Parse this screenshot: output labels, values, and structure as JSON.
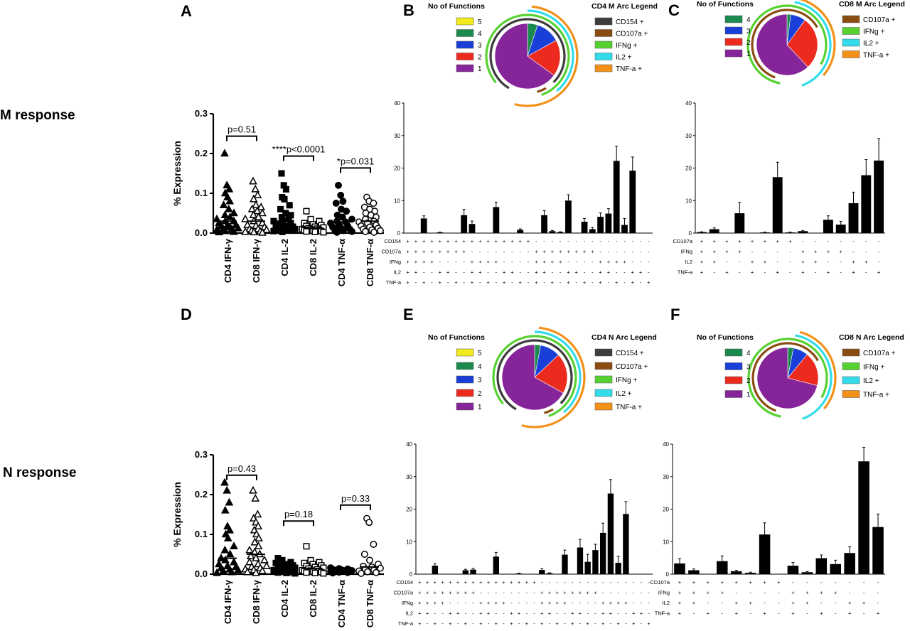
{
  "row_labels": {
    "m": "M response",
    "n": "N response"
  },
  "panel_letters": {
    "a": "A",
    "b": "B",
    "c": "C",
    "d": "D",
    "e": "E",
    "f": "F"
  },
  "colors": {
    "f5": "#f2ea1c",
    "f4": "#1a8a4e",
    "f3": "#1a3fd9",
    "f2": "#ec2b1e",
    "f1": "#86259a",
    "cd154": "#3c3c3c",
    "cd107a": "#8b4c12",
    "ifng": "#56d130",
    "il2": "#32dcea",
    "tnfa": "#f39018"
  },
  "legends": {
    "functions_title": "No of Functions",
    "cd4_m_title": "CD4 M Arc Legend",
    "cd8_m_title": "CD8 M Arc Legend",
    "cd4_n_title": "CD4 N Arc Legend",
    "cd8_n_title": "CD8 N Arc Legend",
    "cd4_functions": [
      {
        "label": "5",
        "color": "#f2ea1c"
      },
      {
        "label": "4",
        "color": "#1a8a4e"
      },
      {
        "label": "3",
        "color": "#1a3fd9"
      },
      {
        "label": "2",
        "color": "#ec2b1e"
      },
      {
        "label": "1",
        "color": "#86259a"
      }
    ],
    "cd8_functions": [
      {
        "label": "4",
        "color": "#1a8a4e"
      },
      {
        "label": "3",
        "color": "#1a3fd9"
      },
      {
        "label": "2",
        "color": "#ec2b1e"
      },
      {
        "label": "1",
        "color": "#86259a"
      }
    ],
    "cd4_arcs": [
      {
        "label": "CD154 +",
        "color": "#3c3c3c"
      },
      {
        "label": "CD107a +",
        "color": "#8b4c12"
      },
      {
        "label": "IFNg +",
        "color": "#56d130"
      },
      {
        "label": "IL2 +",
        "color": "#32dcea"
      },
      {
        "label": "TNF-a +",
        "color": "#f39018"
      }
    ],
    "cd8_arcs": [
      {
        "label": "CD107a +",
        "color": "#8b4c12"
      },
      {
        "label": "IFNg +",
        "color": "#56d130"
      },
      {
        "label": "IL2 +",
        "color": "#32dcea"
      },
      {
        "label": "TNF-a +",
        "color": "#f39018"
      }
    ]
  },
  "chart_data": [
    {
      "id": "A",
      "type": "scatter",
      "ylabel": "% Expression",
      "categories": [
        "CD4 IFN-γ",
        "CD8 IFN-γ",
        "CD4 IL-2",
        "CD8 IL-2",
        "CD4 TNF-α",
        "CD8 TNF-α"
      ],
      "markers": [
        "triangle",
        "triangle-open",
        "square",
        "square-open",
        "circle",
        "circle-open"
      ],
      "ylim": [
        0,
        0.3
      ],
      "yticks": [
        "0.0",
        "0.1",
        "0.2",
        "0.3"
      ],
      "annotations": [
        {
          "text": "p=0.51",
          "pair": [
            0,
            1
          ],
          "y": 0.265
        },
        {
          "text": "****p<0.0001",
          "pair": [
            2,
            3
          ],
          "y": 0.215
        },
        {
          "text": "*p=0.031",
          "pair": [
            4,
            5
          ],
          "y": 0.185
        }
      ],
      "series": [
        [
          0.2,
          0.12,
          0.11,
          0.1,
          0.09,
          0.08,
          0.07,
          0.06,
          0.05,
          0.045,
          0.04,
          0.035,
          0.03,
          0.03,
          0.025,
          0.02,
          0.02,
          0.018,
          0.015,
          0.012,
          0.01,
          0.01,
          0.008,
          0.005,
          0.003,
          0.002
        ],
        [
          0.13,
          0.11,
          0.095,
          0.085,
          0.07,
          0.065,
          0.06,
          0.055,
          0.05,
          0.045,
          0.04,
          0.035,
          0.03,
          0.025,
          0.02,
          0.018,
          0.015,
          0.01,
          0.01,
          0.008,
          0.006,
          0.004,
          0.003,
          0.002,
          0.001
        ],
        [
          0.15,
          0.12,
          0.11,
          0.09,
          0.085,
          0.07,
          0.06,
          0.05,
          0.045,
          0.04,
          0.035,
          0.03,
          0.03,
          0.025,
          0.02,
          0.018,
          0.016,
          0.014,
          0.012,
          0.01,
          0.009,
          0.007,
          0.005,
          0.003
        ],
        [
          0.055,
          0.035,
          0.03,
          0.025,
          0.022,
          0.02,
          0.018,
          0.016,
          0.014,
          0.012,
          0.011,
          0.01,
          0.009,
          0.008,
          0.007,
          0.006,
          0.005,
          0.004,
          0.003,
          0.002
        ],
        [
          0.12,
          0.095,
          0.08,
          0.075,
          0.06,
          0.055,
          0.045,
          0.04,
          0.035,
          0.03,
          0.028,
          0.025,
          0.02,
          0.018,
          0.015,
          0.012,
          0.01,
          0.008,
          0.006,
          0.004,
          0.002
        ],
        [
          0.09,
          0.08,
          0.075,
          0.065,
          0.06,
          0.055,
          0.05,
          0.045,
          0.04,
          0.035,
          0.03,
          0.028,
          0.025,
          0.02,
          0.018,
          0.015,
          0.012,
          0.01,
          0.008,
          0.006,
          0.004,
          0.002
        ]
      ]
    },
    {
      "id": "D",
      "type": "scatter",
      "ylabel": "% Expression",
      "categories": [
        "CD4 IFN-γ",
        "CD8 IFN-γ",
        "CD4 IL-2",
        "CD8 IL-2",
        "CD4 TNF-α",
        "CD8 TNF-α"
      ],
      "markers": [
        "triangle",
        "triangle-open",
        "square",
        "square-open",
        "circle",
        "circle-open"
      ],
      "ylim": [
        0,
        0.3
      ],
      "yticks": [
        "0.0",
        "0.1",
        "0.2",
        "0.3"
      ],
      "annotations": [
        {
          "text": "p=0.43",
          "pair": [
            0,
            1
          ],
          "y": 0.27
        },
        {
          "text": "p=0.18",
          "pair": [
            2,
            3
          ],
          "y": 0.155
        },
        {
          "text": "p=0.33",
          "pair": [
            4,
            5
          ],
          "y": 0.195
        }
      ],
      "series": [
        [
          0.23,
          0.21,
          0.18,
          0.16,
          0.12,
          0.11,
          0.1,
          0.09,
          0.07,
          0.06,
          0.05,
          0.04,
          0.035,
          0.03,
          0.025,
          0.02,
          0.018,
          0.015,
          0.012,
          0.01,
          0.008,
          0.005,
          0.003
        ],
        [
          0.21,
          0.19,
          0.15,
          0.14,
          0.13,
          0.12,
          0.11,
          0.1,
          0.09,
          0.08,
          0.07,
          0.06,
          0.055,
          0.05,
          0.045,
          0.04,
          0.035,
          0.03,
          0.025,
          0.02,
          0.018,
          0.015,
          0.012,
          0.01,
          0.008,
          0.005,
          0.003
        ],
        [
          0.04,
          0.035,
          0.03,
          0.028,
          0.025,
          0.022,
          0.02,
          0.018,
          0.016,
          0.014,
          0.012,
          0.01,
          0.009,
          0.008,
          0.007,
          0.006,
          0.005,
          0.004,
          0.003,
          0.002
        ],
        [
          0.07,
          0.035,
          0.03,
          0.028,
          0.025,
          0.022,
          0.02,
          0.018,
          0.016,
          0.014,
          0.012,
          0.01,
          0.009,
          0.008,
          0.007,
          0.006,
          0.005,
          0.004,
          0.003,
          0.002
        ],
        [
          0.016,
          0.014,
          0.013,
          0.012,
          0.011,
          0.01,
          0.01,
          0.009,
          0.009,
          0.008,
          0.007,
          0.006,
          0.005,
          0.004,
          0.003
        ],
        [
          0.14,
          0.13,
          0.075,
          0.05,
          0.035,
          0.025,
          0.02,
          0.018,
          0.015,
          0.012,
          0.01,
          0.008,
          0.006,
          0.004,
          0.002
        ]
      ]
    },
    {
      "id": "B",
      "type": "bar",
      "ylim": [
        0,
        40
      ],
      "yticks": [
        "0",
        "10",
        "20",
        "30",
        "40"
      ],
      "row_labels": [
        "CD154",
        "CD107a",
        "IFNg",
        "IL2",
        "TNF-a"
      ],
      "combos": [
        "+++++",
        "++++-",
        "+++-+",
        "+++--",
        "++-++",
        "++-+-",
        "++--+",
        "++---",
        "+-+++",
        "+-++-",
        "+-+-+",
        "+-+--",
        "+--++",
        "+--+-",
        "+---+",
        "+----",
        "-++++",
        "-+++-",
        "-++-+",
        "-++--",
        "-+-++",
        "-+-+-",
        "-+--+",
        "-+---",
        "--+++",
        "--++-",
        "--+-+",
        "--+--",
        "---++",
        "---+-",
        "----+"
      ],
      "values": [
        0,
        0,
        4.5,
        0,
        0.2,
        0,
        0,
        5.5,
        2.8,
        0,
        0,
        8.0,
        0,
        0,
        1.0,
        0,
        0,
        5.5,
        0.6,
        0.3,
        10.0,
        0,
        3.5,
        1.2,
        5.0,
        6.0,
        22.2,
        2.5,
        19.2,
        0,
        0
      ],
      "errors": [
        0,
        0,
        0.8,
        0,
        0.1,
        0,
        0,
        1.8,
        0.9,
        0,
        0,
        1.5,
        0,
        0,
        0.3,
        0,
        0,
        1.4,
        0.2,
        0.1,
        1.8,
        0,
        1.0,
        0.5,
        1.2,
        1.5,
        4.5,
        2.0,
        4.2,
        0,
        0
      ]
    },
    {
      "id": "C",
      "type": "bar",
      "ylim": [
        0,
        40
      ],
      "yticks": [
        "0",
        "10",
        "20",
        "30",
        "40"
      ],
      "row_labels": [
        "CD107a",
        "IFNg",
        "IL2",
        "TNF-a"
      ],
      "combos": [
        "++++",
        "+++-",
        "++-+",
        "++--",
        "+-++",
        "+-+-",
        "+--+",
        "+---",
        "-+++",
        "-++-",
        "-+-+",
        "-+--",
        "--++",
        "--+-",
        "---+"
      ],
      "values": [
        0.3,
        1.2,
        0,
        6.1,
        0,
        0.2,
        17.2,
        0.2,
        0.6,
        0,
        4.1,
        2.6,
        9.2,
        17.8,
        22.3
      ],
      "errors": [
        0.1,
        0.4,
        0,
        3.3,
        0,
        0.1,
        4.6,
        0.1,
        0.2,
        0,
        1.2,
        1.0,
        3.4,
        4.8,
        6.8
      ]
    },
    {
      "id": "E",
      "type": "bar",
      "ylim": [
        0,
        40
      ],
      "yticks": [
        "0",
        "10",
        "20",
        "30",
        "40"
      ],
      "row_labels": [
        "CD154",
        "CD107a",
        "IFNg",
        "IL2",
        "TNF-a"
      ],
      "combos": [
        "+++++",
        "++++-",
        "+++-+",
        "+++--",
        "++-++",
        "++-+-",
        "++--+",
        "++---",
        "+-+++",
        "+-++-",
        "+-+-+",
        "+-+--",
        "+--++",
        "+--+-",
        "+---+",
        "+----",
        "-++++",
        "-+++-",
        "-++-+",
        "-++--",
        "-+-++",
        "-+-+-",
        "-+--+",
        "-+---",
        "--+++",
        "--++-",
        "--+-+",
        "--+--",
        "---++",
        "---+-",
        "----+"
      ],
      "values": [
        0,
        0,
        2.6,
        0.1,
        0,
        0,
        1.2,
        1.4,
        0,
        0,
        5.4,
        0,
        0,
        0.2,
        0,
        0,
        1.3,
        0.3,
        0,
        6.0,
        0,
        8.2,
        3.8,
        7.4,
        12.7,
        24.8,
        3.5,
        18.5,
        0,
        0,
        0
      ],
      "errors": [
        0,
        0,
        0.6,
        0,
        0,
        0,
        0.3,
        0.4,
        0,
        0,
        1.3,
        0,
        0,
        0.1,
        0,
        0,
        0.4,
        0.1,
        0,
        1.4,
        0,
        2.5,
        2.3,
        1.8,
        3.0,
        4.3,
        2.0,
        3.8,
        0,
        0,
        0
      ]
    },
    {
      "id": "F",
      "type": "bar",
      "ylim": [
        0,
        40
      ],
      "yticks": [
        "0",
        "10",
        "20",
        "30",
        "40"
      ],
      "row_labels": [
        "CD107a",
        "IFNg",
        "IL2",
        "TNF-a"
      ],
      "combos": [
        "++++",
        "+++-",
        "++-+",
        "++--",
        "+-++",
        "+-+-",
        "+--+",
        "+---",
        "-+++",
        "-++-",
        "-+-+",
        "-+--",
        "--++",
        "--+-",
        "---+"
      ],
      "values": [
        3.3,
        1.2,
        0,
        4.0,
        0.9,
        0.4,
        12.2,
        0,
        2.6,
        0.6,
        4.9,
        3.1,
        6.5,
        34.7,
        14.5
      ],
      "errors": [
        1.5,
        0.4,
        0,
        1.6,
        0.3,
        0.2,
        3.6,
        0,
        1.0,
        0.2,
        1.0,
        1.2,
        1.9,
        4.3,
        4.0
      ]
    },
    {
      "id": "B-pie",
      "type": "pie",
      "labels": [
        "4",
        "3",
        "2",
        "1"
      ],
      "values": [
        5,
        12,
        18,
        65
      ],
      "colors": [
        "#1a8a4e",
        "#1a3fd9",
        "#ec2b1e",
        "#86259a"
      ]
    },
    {
      "id": "C-pie",
      "type": "pie",
      "labels": [
        "4",
        "3",
        "2",
        "1"
      ],
      "values": [
        2,
        8,
        28,
        62
      ],
      "colors": [
        "#1a8a4e",
        "#1a3fd9",
        "#ec2b1e",
        "#86259a"
      ]
    },
    {
      "id": "E-pie",
      "type": "pie",
      "labels": [
        "4",
        "3",
        "2",
        "1"
      ],
      "values": [
        3,
        10,
        20,
        67
      ],
      "colors": [
        "#1a8a4e",
        "#1a3fd9",
        "#ec2b1e",
        "#86259a"
      ]
    },
    {
      "id": "F-pie",
      "type": "pie",
      "labels": [
        "4",
        "3",
        "2",
        "1"
      ],
      "values": [
        3,
        8,
        18,
        71
      ],
      "colors": [
        "#1a8a4e",
        "#1a3fd9",
        "#ec2b1e",
        "#86259a"
      ]
    }
  ]
}
